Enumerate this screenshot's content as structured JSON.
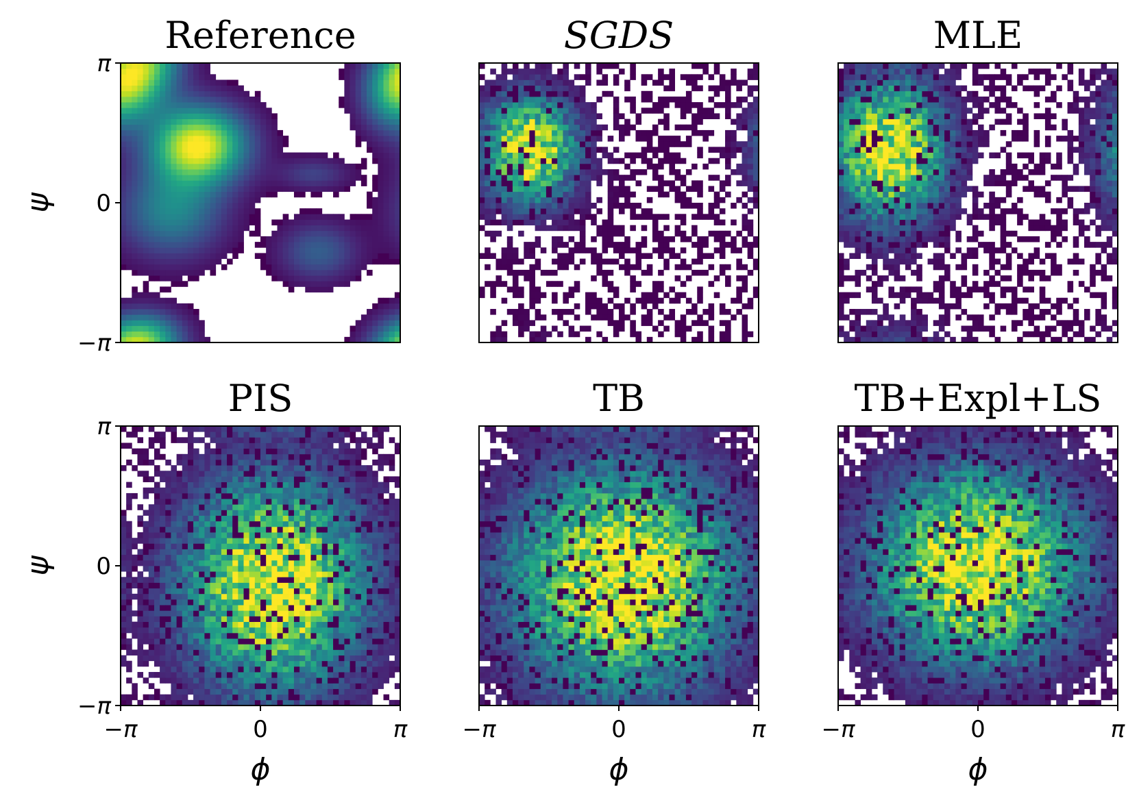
{
  "chart_data": [
    {
      "type": "heatmap",
      "title": "Reference",
      "title_style": "normal",
      "xlabel": "",
      "ylabel": "ψ",
      "xlim": [
        -3.14159,
        3.14159
      ],
      "ylim": [
        -3.14159,
        3.14159
      ],
      "xtick_labels": [],
      "ytick_labels": [
        "−π",
        "0",
        "π"
      ],
      "bins": 50,
      "colormap": "viridis",
      "empty_color": "#ffffff",
      "modes": [
        {
          "phi": -1.4,
          "psi": 1.3,
          "weight": 1.0,
          "sigma_phi": 0.75,
          "sigma_psi": 0.6
        },
        {
          "phi": -2.8,
          "psi": 2.7,
          "weight": 0.55,
          "sigma_phi": 0.6,
          "sigma_psi": 0.5
        },
        {
          "phi": -2.0,
          "psi": -0.2,
          "weight": 0.45,
          "sigma_phi": 0.8,
          "sigma_psi": 0.7
        },
        {
          "phi": 1.3,
          "psi": -1.1,
          "weight": 0.3,
          "sigma_phi": 0.6,
          "sigma_psi": 0.45
        },
        {
          "phi": 1.2,
          "psi": 0.65,
          "weight": 0.2,
          "sigma_phi": 0.55,
          "sigma_psi": 0.25
        },
        {
          "phi": 3.0,
          "psi": 2.4,
          "weight": 0.45,
          "sigma_phi": 0.5,
          "sigma_psi": 0.6
        },
        {
          "phi": -2.6,
          "psi": -3.0,
          "weight": 0.5,
          "sigma_phi": 0.6,
          "sigma_psi": 0.4
        }
      ]
    },
    {
      "type": "heatmap",
      "title": "SGDS",
      "title_style": "italic",
      "xlabel": "",
      "ylabel": "",
      "xlim": [
        -3.14159,
        3.14159
      ],
      "ylim": [
        -3.14159,
        3.14159
      ],
      "xtick_labels": [],
      "ytick_labels": [],
      "bins": 50,
      "colormap": "viridis",
      "empty_color": "#ffffff",
      "modes": [
        {
          "phi": -2.0,
          "psi": 1.2,
          "weight": 1.0,
          "sigma_phi": 0.65,
          "sigma_psi": 0.75
        }
      ]
    },
    {
      "type": "heatmap",
      "title": "MLE",
      "title_style": "normal",
      "xlabel": "",
      "ylabel": "",
      "xlim": [
        -3.14159,
        3.14159
      ],
      "ylim": [
        -3.14159,
        3.14159
      ],
      "xtick_labels": [],
      "ytick_labels": [],
      "bins": 50,
      "colormap": "viridis",
      "empty_color": "#ffffff",
      "modes": [
        {
          "phi": -2.0,
          "psi": 1.2,
          "weight": 1.0,
          "sigma_phi": 0.8,
          "sigma_psi": 1.0
        }
      ]
    },
    {
      "type": "heatmap",
      "title": "PIS",
      "title_style": "normal",
      "xlabel": "ϕ",
      "ylabel": "ψ",
      "xlim": [
        -3.14159,
        3.14159
      ],
      "ylim": [
        -3.14159,
        3.14159
      ],
      "xtick_labels": [
        "−π",
        "0",
        "π"
      ],
      "ytick_labels": [
        "−π",
        "0",
        "π"
      ],
      "bins": 50,
      "colormap": "viridis",
      "empty_color": "#ffffff",
      "modes": [
        {
          "phi": 0.3,
          "psi": -0.4,
          "weight": 1.0,
          "sigma_phi": 1.3,
          "sigma_psi": 1.5
        }
      ]
    },
    {
      "type": "heatmap",
      "title": "TB",
      "title_style": "normal",
      "xlabel": "ϕ",
      "ylabel": "",
      "xlim": [
        -3.14159,
        3.14159
      ],
      "ylim": [
        -3.14159,
        3.14159
      ],
      "xtick_labels": [
        "−π",
        "0",
        "π"
      ],
      "ytick_labels": [],
      "bins": 50,
      "colormap": "viridis",
      "empty_color": "#ffffff",
      "modes": [
        {
          "phi": 0.1,
          "psi": -0.3,
          "weight": 1.0,
          "sigma_phi": 1.6,
          "sigma_psi": 1.6
        }
      ]
    },
    {
      "type": "heatmap",
      "title": "TB+Expl+LS",
      "title_style": "normal",
      "xlabel": "ϕ",
      "ylabel": "",
      "xlim": [
        -3.14159,
        3.14159
      ],
      "ylim": [
        -3.14159,
        3.14159
      ],
      "xtick_labels": [
        "−π",
        "0",
        "π"
      ],
      "ytick_labels": [],
      "bins": 50,
      "colormap": "viridis",
      "empty_color": "#ffffff",
      "modes": [
        {
          "phi": 0.0,
          "psi": 0.0,
          "weight": 1.0,
          "sigma_phi": 1.5,
          "sigma_psi": 1.4
        }
      ]
    }
  ]
}
